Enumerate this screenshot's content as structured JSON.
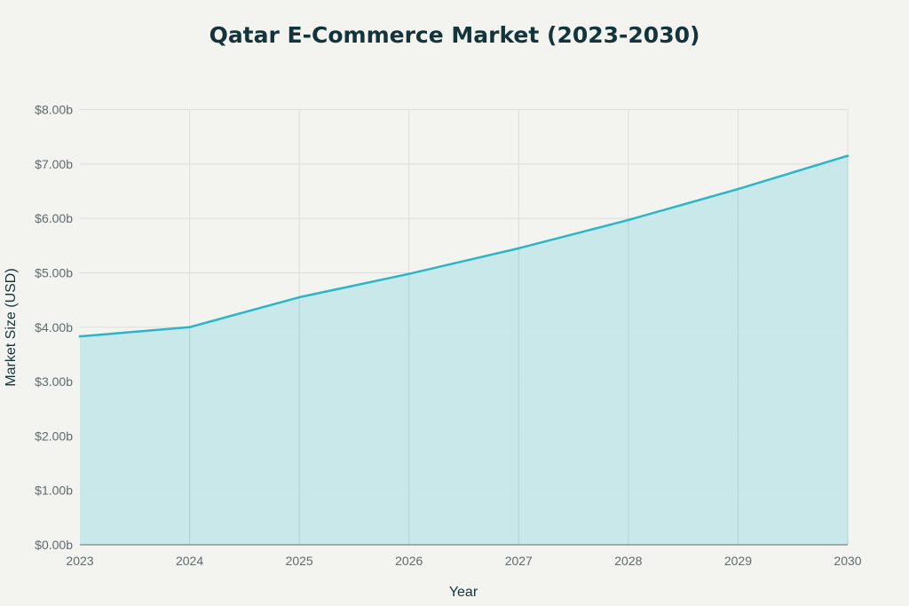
{
  "chart_data": {
    "type": "area",
    "title": "Qatar E-Commerce Market (2023-2030)",
    "xlabel": "Year",
    "ylabel": "Market Size (USD)",
    "categories": [
      "2023",
      "2024",
      "2025",
      "2026",
      "2027",
      "2028",
      "2029",
      "2030"
    ],
    "series": [
      {
        "values": [
          3.83,
          4.0,
          4.55,
          4.98,
          5.45,
          5.97,
          6.54,
          7.15
        ]
      }
    ],
    "ylim": [
      0,
      8
    ],
    "yticks": [
      0,
      1,
      2,
      3,
      4,
      5,
      6,
      7,
      8
    ],
    "ytick_labels": [
      "$0.00b",
      "$1.00b",
      "$2.00b",
      "$3.00b",
      "$4.00b",
      "$5.00b",
      "$6.00b",
      "$7.00b",
      "$8.00b"
    ],
    "grid": true,
    "colors": {
      "line": "#2bb5c8",
      "fill": "#c6e7e8",
      "grid": "#dcdcd8",
      "axis": "#5f6b6d"
    }
  }
}
